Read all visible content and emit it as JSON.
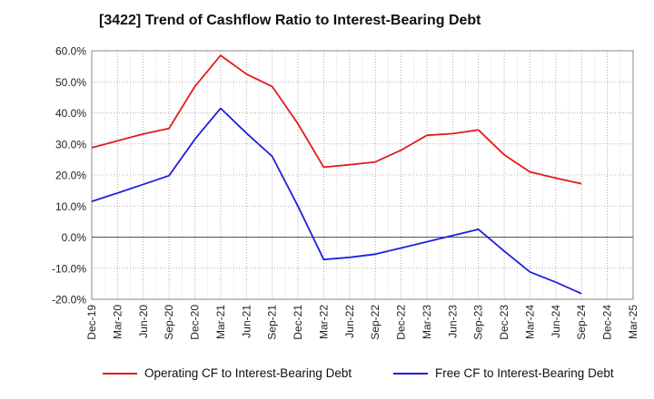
{
  "title": "[3422]  Trend of Cashflow Ratio to Interest-Bearing Debt",
  "chart_data": {
    "type": "line",
    "title": "[3422]  Trend of Cashflow Ratio to Interest-Bearing Debt",
    "xlabel": "",
    "ylabel": "",
    "x": [
      "Dec-19",
      "Mar-20",
      "Jun-20",
      "Sep-20",
      "Dec-20",
      "Mar-21",
      "Jun-21",
      "Sep-21",
      "Dec-21",
      "Mar-22",
      "Jun-22",
      "Sep-22",
      "Dec-22",
      "Mar-23",
      "Jun-23",
      "Sep-23",
      "Dec-23",
      "Mar-24",
      "Jun-24",
      "Sep-24",
      "Dec-24",
      "Mar-25"
    ],
    "ylim": [
      -20,
      60
    ],
    "yticks": [
      60,
      50,
      40,
      30,
      20,
      10,
      0,
      -10,
      -20
    ],
    "ytick_labels": [
      "60.0%",
      "50.0%",
      "40.0%",
      "30.0%",
      "20.0%",
      "10.0%",
      "0.0%",
      "-10.0%",
      "-20.0%"
    ],
    "grid": true,
    "legend_position": "bottom",
    "series": [
      {
        "name": "Operating CF to Interest-Bearing Debt",
        "color": "#e41a1c",
        "values": [
          28.8,
          31.0,
          33.2,
          35.0,
          48.5,
          58.5,
          52.5,
          48.5,
          36.5,
          22.5,
          23.3,
          24.2,
          28.0,
          32.8,
          33.3,
          34.5,
          26.5,
          21.0,
          19.0,
          17.2,
          null,
          null
        ]
      },
      {
        "name": "Free CF to Interest-Bearing Debt",
        "color": "#1f1fe0",
        "values": [
          11.5,
          14.2,
          17.0,
          19.8,
          31.5,
          41.5,
          33.5,
          26.0,
          10.0,
          -7.2,
          -6.5,
          -5.5,
          -3.5,
          -1.5,
          0.5,
          2.5,
          -4.5,
          -11.2,
          -14.5,
          -18.2,
          null,
          null
        ]
      }
    ]
  }
}
